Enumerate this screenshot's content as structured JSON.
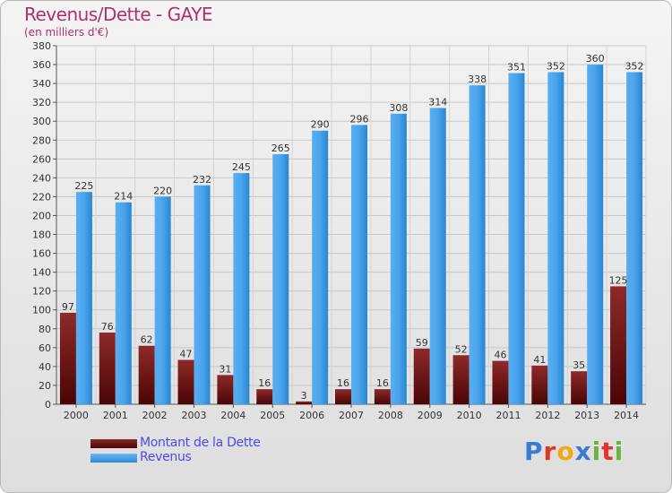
{
  "header": {
    "title": "Revenus/Dette - GAYE",
    "subtitle": "(en milliers d'€)"
  },
  "legend": {
    "items": [
      {
        "label": "Montant de la Dette",
        "color": "#6e1a1a"
      },
      {
        "label": "Revenus",
        "color": "#3d9ae3"
      }
    ]
  },
  "logo": {
    "text": "Proxiti",
    "colors": [
      "#3a7bd5",
      "#e2342a",
      "#f2a818",
      "#3a7bd5",
      "#6cb33e",
      "#e2342a",
      "#6cb33e"
    ]
  },
  "chart_data": {
    "type": "bar",
    "title": "Revenus/Dette - GAYE",
    "subtitle": "(en milliers d'€)",
    "categories": [
      "2000",
      "2001",
      "2002",
      "2003",
      "2004",
      "2005",
      "2006",
      "2007",
      "2008",
      "2009",
      "2010",
      "2011",
      "2012",
      "2013",
      "2014"
    ],
    "series": [
      {
        "name": "Montant de la Dette",
        "values": [
          97,
          76,
          62,
          47,
          31,
          16,
          3,
          16,
          16,
          59,
          52,
          46,
          41,
          35,
          125
        ]
      },
      {
        "name": "Revenus",
        "values": [
          225,
          214,
          220,
          232,
          245,
          265,
          290,
          296,
          308,
          314,
          338,
          351,
          352,
          360,
          352
        ]
      }
    ],
    "ylim": [
      0,
      380
    ],
    "yticks": [
      0,
      20,
      40,
      60,
      80,
      100,
      120,
      140,
      160,
      180,
      200,
      220,
      240,
      260,
      280,
      300,
      320,
      340,
      360,
      380
    ],
    "grid": true,
    "legend_position": "bottom-left",
    "colors": {
      "debt": "#6e1a1a",
      "revenue": "#3d9ae3"
    }
  }
}
